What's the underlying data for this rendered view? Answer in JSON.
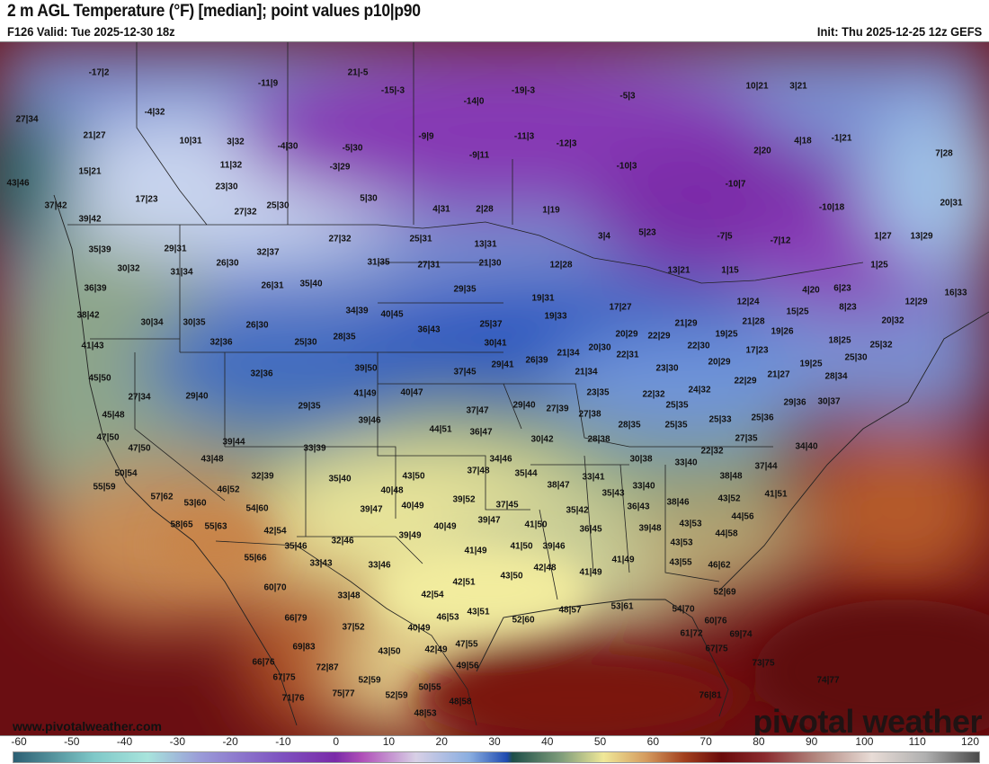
{
  "header": {
    "title": "2 m AGL Temperature (°F) [median]; point values p10|p90",
    "valid": "F126 Valid: Tue 2025-12-30 18z",
    "init": "Init: Thu 2025-12-25 12z GEFS"
  },
  "map": {
    "website": "www.pivotalweather.com",
    "brand": "pivotal weather",
    "point_values": [
      "-17|2",
      "21|-5",
      "-11|9",
      "-15|-3",
      "-19|-3",
      "-5|3",
      "10|21",
      "3|21",
      "-14|0",
      "27|34",
      "-4|32",
      "21|27",
      "10|31",
      "3|32",
      "-4|30",
      "-5|30",
      "-9|9",
      "-9|11",
      "-11|3",
      "-12|3",
      "2|20",
      "4|18",
      "-1|21",
      "7|28",
      "15|21",
      "11|32",
      "-3|29",
      "-10|3",
      "43|46",
      "23|30",
      "-10|7",
      "17|23",
      "5|30",
      "37|42",
      "27|32",
      "25|30",
      "4|31",
      "2|28",
      "1|19",
      "-10|18",
      "20|31",
      "39|42",
      "3|4",
      "5|23",
      "-7|5",
      "-7|12",
      "1|27",
      "13|29",
      "27|32",
      "25|31",
      "13|31",
      "29|31",
      "32|37",
      "35|39",
      "21|30",
      "31|35",
      "27|31",
      "26|30",
      "30|32",
      "31|34",
      "12|28",
      "1|25",
      "13|21",
      "1|15",
      "36|39",
      "26|31",
      "35|40",
      "29|35",
      "4|20",
      "6|23",
      "16|33",
      "19|31",
      "17|27",
      "12|24",
      "8|23",
      "12|29",
      "38|42",
      "30|34",
      "30|35",
      "26|30",
      "34|39",
      "40|45",
      "25|37",
      "19|33",
      "21|29",
      "21|28",
      "15|25",
      "20|32",
      "36|43",
      "20|29",
      "22|29",
      "19|25",
      "19|26",
      "41|43",
      "32|36",
      "25|30",
      "28|35",
      "30|41",
      "22|30",
      "17|23",
      "18|25",
      "25|32",
      "21|34",
      "20|30",
      "22|31",
      "26|39",
      "20|29",
      "25|30",
      "45|50",
      "32|36",
      "39|50",
      "37|45",
      "29|41",
      "21|34",
      "23|30",
      "19|25",
      "21|27",
      "22|29",
      "28|34",
      "27|34",
      "29|40",
      "41|49",
      "40|47",
      "23|35",
      "22|32",
      "24|32",
      "29|36",
      "30|37",
      "29|35",
      "37|47",
      "29|40",
      "27|39",
      "27|38",
      "25|35",
      "45|48",
      "39|46",
      "44|51",
      "36|47",
      "28|35",
      "25|35",
      "25|33",
      "25|36",
      "47|50",
      "39|44",
      "30|42",
      "28|38",
      "27|35",
      "34|40",
      "47|50",
      "33|39",
      "43|48",
      "34|46",
      "30|38",
      "33|40",
      "22|32",
      "37|44",
      "50|54",
      "32|39",
      "35|40",
      "43|50",
      "37|48",
      "35|44",
      "38|47",
      "33|41",
      "38|48",
      "55|59",
      "46|52",
      "40|48",
      "33|40",
      "41|51",
      "57|62",
      "53|60",
      "39|52",
      "35|43",
      "38|46",
      "43|52",
      "54|60",
      "39|47",
      "40|49",
      "37|45",
      "35|42",
      "36|43",
      "58|65",
      "55|63",
      "42|54",
      "39|47",
      "41|50",
      "40|49",
      "36|45",
      "39|48",
      "43|53",
      "44|56",
      "39|49",
      "44|58",
      "35|46",
      "32|46",
      "41|49",
      "41|50",
      "39|46",
      "43|53",
      "55|66",
      "33|43",
      "33|46",
      "42|48",
      "41|49",
      "41|49",
      "43|55",
      "46|62",
      "43|50",
      "42|51",
      "60|70",
      "52|69",
      "33|48",
      "42|54",
      "46|53",
      "43|51",
      "52|60",
      "48|57",
      "53|61",
      "54|70",
      "66|79",
      "37|52",
      "40|49",
      "60|76",
      "61|72",
      "69|74",
      "69|83",
      "43|50",
      "42|49",
      "47|55",
      "67|75",
      "66|76",
      "72|87",
      "49|56",
      "73|75",
      "67|75",
      "52|59",
      "50|55",
      "74|77",
      "71|76",
      "75|77",
      "52|59",
      "48|58",
      "76|81",
      "48|53"
    ]
  },
  "colorbar": {
    "unit": "°F",
    "ticks": [
      "-60",
      "-50",
      "-40",
      "-30",
      "-20",
      "-10",
      "0",
      "10",
      "20",
      "30",
      "40",
      "50",
      "60",
      "70",
      "80",
      "90",
      "100",
      "110",
      "120"
    ],
    "stops": [
      {
        "v": -60,
        "c": "#2c5f73"
      },
      {
        "v": -45,
        "c": "#7fc8c8"
      },
      {
        "v": -35,
        "c": "#a8e4dc"
      },
      {
        "v": -25,
        "c": "#9a9ad8"
      },
      {
        "v": -10,
        "c": "#7e52c0"
      },
      {
        "v": 0,
        "c": "#7a2aa8"
      },
      {
        "v": 5,
        "c": "#b050b8"
      },
      {
        "v": 15,
        "c": "#d8d0e6"
      },
      {
        "v": 25,
        "c": "#8aaee0"
      },
      {
        "v": 32,
        "c": "#1f4ab0"
      },
      {
        "v": 33,
        "c": "#1e4e48"
      },
      {
        "v": 42,
        "c": "#7e9c7a"
      },
      {
        "v": 50,
        "c": "#f0e898"
      },
      {
        "v": 58,
        "c": "#d49a5e"
      },
      {
        "v": 65,
        "c": "#a2401e"
      },
      {
        "v": 72,
        "c": "#6a0a0a"
      },
      {
        "v": 80,
        "c": "#8a2a2e"
      },
      {
        "v": 90,
        "c": "#b48a82"
      },
      {
        "v": 100,
        "c": "#e8dcd6"
      },
      {
        "v": 110,
        "c": "#b0b0b0"
      },
      {
        "v": 120,
        "c": "#4a4a4a"
      }
    ]
  }
}
